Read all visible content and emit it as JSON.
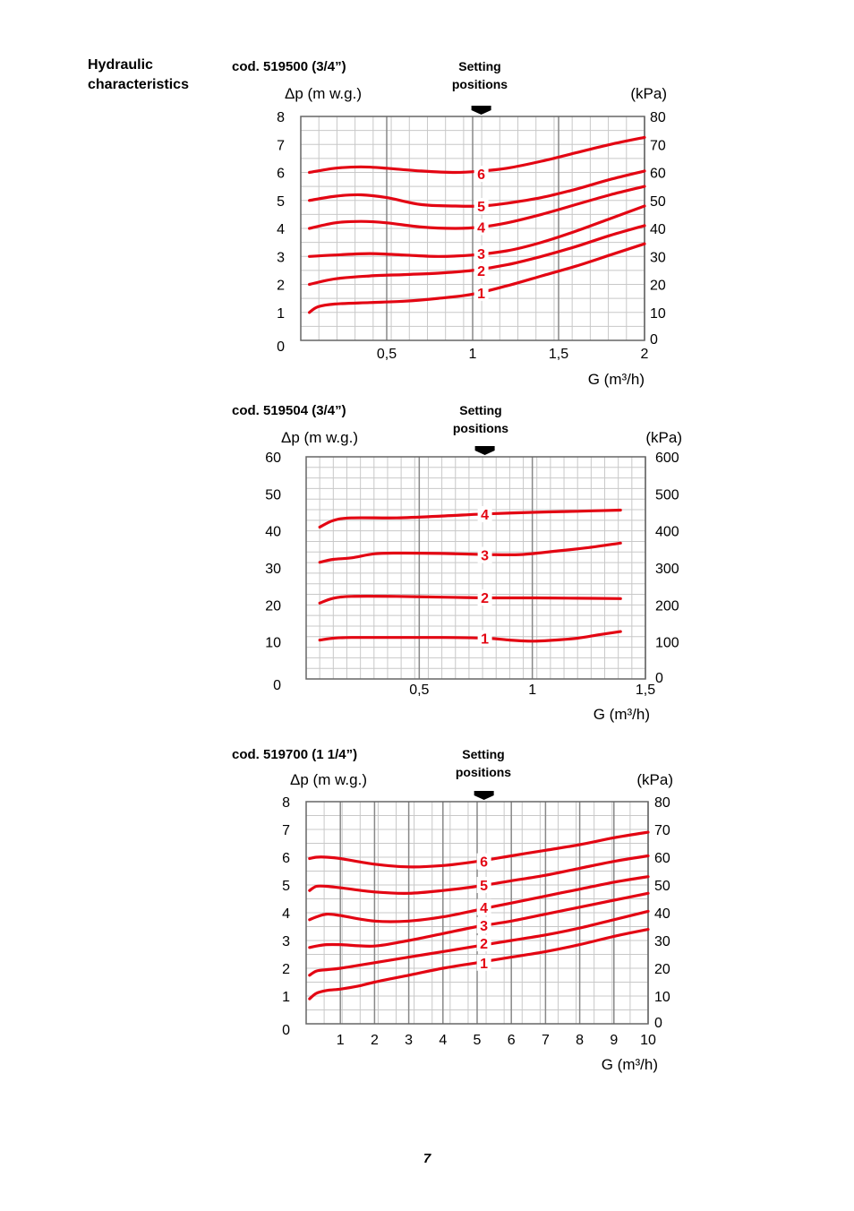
{
  "section": {
    "title_line1": "Hydraulic",
    "title_line2": "characteristics"
  },
  "page_number": "7",
  "colors": {
    "curve": "#e30613",
    "grid": "#c8c8c8",
    "major_grid": "#888888",
    "frame": "#666666",
    "label_bg": "#ffffff"
  },
  "chart_data": [
    {
      "type": "line",
      "title": "cod. 519500 (3/4”)",
      "setting_label_1": "Setting",
      "setting_label_2": "positions",
      "setting_icon": "down-arrow-icon",
      "ylabel": "Δp (m w.g.)",
      "y2label": "(kPa)",
      "xlabel": "G (m³/h)",
      "xlim": [
        0,
        2
      ],
      "ylim": [
        0,
        8
      ],
      "y2lim": [
        0,
        80
      ],
      "x_ticks": [
        {
          "v": 0.5,
          "label": "0,5"
        },
        {
          "v": 1,
          "label": "1"
        },
        {
          "v": 1.5,
          "label": "1,5"
        },
        {
          "v": 2,
          "label": "2"
        }
      ],
      "y_ticks": [
        {
          "v": 8,
          "label": "8"
        },
        {
          "v": 7,
          "label": "7"
        },
        {
          "v": 6,
          "label": "6"
        },
        {
          "v": 5,
          "label": "5"
        },
        {
          "v": 4,
          "label": "4"
        },
        {
          "v": 3,
          "label": "3"
        },
        {
          "v": 2,
          "label": "2"
        },
        {
          "v": 1,
          "label": "1"
        },
        {
          "v": 0,
          "label": "0"
        }
      ],
      "y2_ticks": [
        {
          "v": 80,
          "label": "80"
        },
        {
          "v": 70,
          "label": "70"
        },
        {
          "v": 60,
          "label": "60"
        },
        {
          "v": 50,
          "label": "50"
        },
        {
          "v": 40,
          "label": "40"
        },
        {
          "v": 30,
          "label": "30"
        },
        {
          "v": 20,
          "label": "20"
        },
        {
          "v": 10,
          "label": "10"
        },
        {
          "v": 0,
          "label": "0"
        }
      ],
      "setting_x": 1.05,
      "series": [
        {
          "name": "1",
          "label_x": 1.05,
          "label_y": 1.7,
          "x": [
            0.05,
            0.1,
            0.2,
            0.4,
            0.6,
            0.8,
            1.0,
            1.2,
            1.4,
            1.6,
            1.8,
            2.0
          ],
          "y": [
            1.0,
            1.2,
            1.3,
            1.35,
            1.4,
            1.5,
            1.65,
            1.95,
            2.3,
            2.65,
            3.05,
            3.45
          ]
        },
        {
          "name": "2",
          "label_x": 1.05,
          "label_y": 2.5,
          "x": [
            0.05,
            0.2,
            0.4,
            0.6,
            0.8,
            1.0,
            1.2,
            1.4,
            1.6,
            1.8,
            2.0
          ],
          "y": [
            2.0,
            2.2,
            2.3,
            2.35,
            2.4,
            2.5,
            2.7,
            3.0,
            3.35,
            3.75,
            4.1
          ]
        },
        {
          "name": "3",
          "label_x": 1.05,
          "label_y": 3.1,
          "x": [
            0.05,
            0.2,
            0.4,
            0.6,
            0.8,
            1.0,
            1.2,
            1.4,
            1.6,
            1.8,
            2.0
          ],
          "y": [
            3.0,
            3.05,
            3.1,
            3.05,
            3.0,
            3.05,
            3.2,
            3.5,
            3.9,
            4.35,
            4.8
          ]
        },
        {
          "name": "4",
          "label_x": 1.05,
          "label_y": 4.05,
          "x": [
            0.05,
            0.2,
            0.35,
            0.5,
            0.7,
            0.9,
            1.05,
            1.2,
            1.4,
            1.6,
            1.8,
            2.0
          ],
          "y": [
            4.0,
            4.2,
            4.25,
            4.2,
            4.05,
            4.0,
            4.05,
            4.2,
            4.5,
            4.85,
            5.2,
            5.5
          ]
        },
        {
          "name": "5",
          "label_x": 1.05,
          "label_y": 4.8,
          "x": [
            0.05,
            0.2,
            0.35,
            0.5,
            0.7,
            0.9,
            1.05,
            1.2,
            1.4,
            1.6,
            1.8,
            2.0
          ],
          "y": [
            5.0,
            5.15,
            5.2,
            5.1,
            4.85,
            4.8,
            4.8,
            4.9,
            5.1,
            5.4,
            5.75,
            6.05
          ]
        },
        {
          "name": "6",
          "label_x": 1.05,
          "label_y": 5.95,
          "x": [
            0.05,
            0.2,
            0.35,
            0.5,
            0.7,
            0.9,
            1.05,
            1.2,
            1.4,
            1.6,
            1.8,
            2.0
          ],
          "y": [
            6.0,
            6.15,
            6.2,
            6.15,
            6.05,
            6.0,
            6.05,
            6.15,
            6.4,
            6.7,
            7.0,
            7.25
          ]
        }
      ]
    },
    {
      "type": "line",
      "title": "cod. 519504 (3/4”)",
      "setting_label_1": "Setting",
      "setting_label_2": "positions",
      "setting_icon": "down-arrow-icon",
      "ylabel": "Δp (m w.g.)",
      "y2label": "(kPa)",
      "xlabel": "G (m³/h)",
      "xlim": [
        0,
        1.5
      ],
      "ylim": [
        0,
        60
      ],
      "y2lim": [
        0,
        600
      ],
      "x_ticks": [
        {
          "v": 0.5,
          "label": "0,5"
        },
        {
          "v": 1,
          "label": "1"
        },
        {
          "v": 1.5,
          "label": "1,5"
        }
      ],
      "y_ticks": [
        {
          "v": 60,
          "label": "60"
        },
        {
          "v": 50,
          "label": "50"
        },
        {
          "v": 40,
          "label": "40"
        },
        {
          "v": 30,
          "label": "30"
        },
        {
          "v": 20,
          "label": "20"
        },
        {
          "v": 10,
          "label": "10"
        },
        {
          "v": 0,
          "label": "0"
        }
      ],
      "y2_ticks": [
        {
          "v": 600,
          "label": "600"
        },
        {
          "v": 500,
          "label": "500"
        },
        {
          "v": 400,
          "label": "400"
        },
        {
          "v": 300,
          "label": "300"
        },
        {
          "v": 200,
          "label": "200"
        },
        {
          "v": 100,
          "label": "100"
        },
        {
          "v": 0,
          "label": "0"
        }
      ],
      "setting_x": 0.79,
      "series": [
        {
          "name": "1",
          "label_x": 0.79,
          "label_y": 11,
          "x": [
            0.06,
            0.12,
            0.2,
            0.4,
            0.6,
            0.8,
            0.9,
            1.0,
            1.1,
            1.2,
            1.3,
            1.39
          ],
          "y": [
            10.5,
            11.0,
            11.2,
            11.2,
            11.2,
            11.0,
            10.5,
            10.2,
            10.5,
            11.0,
            12.0,
            12.8
          ]
        },
        {
          "name": "2",
          "label_x": 0.79,
          "label_y": 22,
          "x": [
            0.06,
            0.12,
            0.2,
            0.4,
            0.6,
            0.8,
            1.0,
            1.2,
            1.39
          ],
          "y": [
            20.5,
            21.8,
            22.3,
            22.3,
            22.1,
            21.9,
            21.9,
            21.8,
            21.7
          ]
        },
        {
          "name": "3",
          "label_x": 0.79,
          "label_y": 33.5,
          "x": [
            0.06,
            0.12,
            0.2,
            0.3,
            0.4,
            0.6,
            0.8,
            0.95,
            1.1,
            1.25,
            1.39
          ],
          "y": [
            31.5,
            32.3,
            32.7,
            33.8,
            34.0,
            33.9,
            33.6,
            33.6,
            34.5,
            35.5,
            36.7
          ]
        },
        {
          "name": "4",
          "label_x": 0.79,
          "label_y": 44.5,
          "x": [
            0.06,
            0.12,
            0.2,
            0.4,
            0.6,
            0.8,
            1.0,
            1.2,
            1.39
          ],
          "y": [
            41.0,
            42.8,
            43.5,
            43.5,
            44.0,
            44.6,
            45.0,
            45.3,
            45.6
          ]
        }
      ]
    },
    {
      "type": "line",
      "title": "cod. 519700 (1 1/4”)",
      "setting_label_1": "Setting",
      "setting_label_2": "positions",
      "setting_icon": "down-arrow-icon",
      "ylabel": "Δp (m w.g.)",
      "y2label": "(kPa)",
      "xlabel": "G (m³/h)",
      "xlim": [
        0,
        10
      ],
      "ylim": [
        0,
        8
      ],
      "y2lim": [
        0,
        80
      ],
      "x_ticks": [
        {
          "v": 1,
          "label": "1"
        },
        {
          "v": 2,
          "label": "2"
        },
        {
          "v": 3,
          "label": "3"
        },
        {
          "v": 4,
          "label": "4"
        },
        {
          "v": 5,
          "label": "5"
        },
        {
          "v": 6,
          "label": "6"
        },
        {
          "v": 7,
          "label": "7"
        },
        {
          "v": 8,
          "label": "8"
        },
        {
          "v": 9,
          "label": "9"
        },
        {
          "v": 10,
          "label": "10"
        }
      ],
      "y_ticks": [
        {
          "v": 8,
          "label": "8"
        },
        {
          "v": 7,
          "label": "7"
        },
        {
          "v": 6,
          "label": "6"
        },
        {
          "v": 5,
          "label": "5"
        },
        {
          "v": 4,
          "label": "4"
        },
        {
          "v": 3,
          "label": "3"
        },
        {
          "v": 2,
          "label": "2"
        },
        {
          "v": 1,
          "label": "1"
        },
        {
          "v": 0,
          "label": "0"
        }
      ],
      "y2_ticks": [
        {
          "v": 80,
          "label": "80"
        },
        {
          "v": 70,
          "label": "70"
        },
        {
          "v": 60,
          "label": "60"
        },
        {
          "v": 50,
          "label": "50"
        },
        {
          "v": 40,
          "label": "40"
        },
        {
          "v": 30,
          "label": "30"
        },
        {
          "v": 20,
          "label": "20"
        },
        {
          "v": 10,
          "label": "10"
        },
        {
          "v": 0,
          "label": "0"
        }
      ],
      "setting_x": 5.2,
      "series": [
        {
          "name": "1",
          "label_x": 5.2,
          "label_y": 2.2,
          "x": [
            0.1,
            0.3,
            0.6,
            1.0,
            1.5,
            2.0,
            3.0,
            4.0,
            5.0,
            6.0,
            7.0,
            8.0,
            9.0,
            10.0
          ],
          "y": [
            0.9,
            1.1,
            1.2,
            1.25,
            1.35,
            1.5,
            1.75,
            2.0,
            2.2,
            2.4,
            2.6,
            2.85,
            3.15,
            3.4
          ]
        },
        {
          "name": "2",
          "label_x": 5.2,
          "label_y": 2.9,
          "x": [
            0.1,
            0.3,
            0.6,
            1.0,
            2.0,
            3.0,
            4.0,
            5.0,
            6.0,
            7.0,
            8.0,
            9.0,
            10.0
          ],
          "y": [
            1.75,
            1.9,
            1.95,
            2.0,
            2.2,
            2.4,
            2.6,
            2.8,
            3.0,
            3.2,
            3.45,
            3.75,
            4.05
          ]
        },
        {
          "name": "3",
          "label_x": 5.2,
          "label_y": 3.55,
          "x": [
            0.1,
            0.3,
            0.6,
            1.0,
            2.0,
            3.0,
            4.0,
            5.0,
            6.0,
            7.0,
            8.0,
            9.0,
            10.0
          ],
          "y": [
            2.75,
            2.8,
            2.85,
            2.85,
            2.8,
            3.0,
            3.25,
            3.5,
            3.7,
            3.95,
            4.2,
            4.45,
            4.7
          ]
        },
        {
          "name": "4",
          "label_x": 5.2,
          "label_y": 4.2,
          "x": [
            0.1,
            0.3,
            0.6,
            1.0,
            2.0,
            3.0,
            4.0,
            5.0,
            6.0,
            7.0,
            8.0,
            9.0,
            10.0
          ],
          "y": [
            3.75,
            3.85,
            3.95,
            3.9,
            3.7,
            3.7,
            3.85,
            4.1,
            4.35,
            4.6,
            4.85,
            5.1,
            5.3
          ]
        },
        {
          "name": "5",
          "label_x": 5.2,
          "label_y": 5.0,
          "x": [
            0.1,
            0.3,
            0.6,
            1.0,
            2.0,
            3.0,
            4.0,
            5.0,
            6.0,
            7.0,
            8.0,
            9.0,
            10.0
          ],
          "y": [
            4.8,
            4.95,
            4.95,
            4.9,
            4.75,
            4.7,
            4.8,
            4.95,
            5.15,
            5.35,
            5.6,
            5.85,
            6.05
          ]
        },
        {
          "name": "6",
          "label_x": 5.2,
          "label_y": 5.85,
          "x": [
            0.1,
            0.3,
            0.6,
            1.0,
            2.0,
            3.0,
            4.0,
            5.0,
            6.0,
            7.0,
            8.0,
            9.0,
            10.0
          ],
          "y": [
            5.95,
            6.0,
            6.0,
            5.95,
            5.75,
            5.65,
            5.7,
            5.85,
            6.05,
            6.25,
            6.45,
            6.7,
            6.9
          ]
        }
      ]
    }
  ]
}
